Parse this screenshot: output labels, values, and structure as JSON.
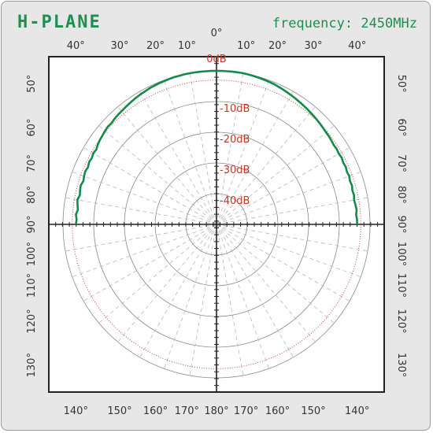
{
  "header": {
    "title": "H-PLANE",
    "frequency_label": "frequency:",
    "frequency_value": "2450",
    "frequency_unit": "MHz"
  },
  "colors": {
    "title": "#1e8f4f",
    "pattern": "#138a4a",
    "db_labels": "#c0392b",
    "reference_ring": "#c0392b",
    "grid": "#b8b8b8",
    "axes": "#222222"
  },
  "chart_data": {
    "type": "polar",
    "title": "H-PLANE",
    "subtitle": "frequency: 2450MHz",
    "zero_label": "0°",
    "top_angle_labels": [
      "40°",
      "30°",
      "20°",
      "10°",
      "10°",
      "20°",
      "30°",
      "40°"
    ],
    "side_angle_labels": [
      "50°",
      "60°",
      "70°",
      "80°",
      "90°",
      "100°",
      "110°",
      "120°",
      "130°"
    ],
    "bottom_angle_labels": [
      "140°",
      "150°",
      "160°",
      "170°",
      "180°",
      "170°",
      "160°",
      "150°",
      "140°"
    ],
    "radial_labels": [
      {
        "label": "0dB",
        "db": 0
      },
      {
        "label": "-10dB",
        "db": -10
      },
      {
        "label": "-20dB",
        "db": -20
      },
      {
        "label": "-30dB",
        "db": -30
      },
      {
        "label": "-40dB",
        "db": -40
      }
    ],
    "radial_range_db": [
      -50,
      0
    ],
    "reference_ring_db": -3,
    "angular_grid_step_deg": 10,
    "series": [
      {
        "angles_deg": [
          -90,
          -88,
          -86,
          -84,
          -82,
          -80,
          -78,
          -76,
          -74,
          -72,
          -70,
          -68,
          -66,
          -64,
          -62,
          -60,
          -58,
          -56,
          -54,
          -52,
          -50,
          -48,
          -46,
          -44,
          -42,
          -40,
          -38,
          -36,
          -34,
          -32,
          -30,
          -28,
          -26,
          -24,
          -22,
          -20,
          -18,
          -16,
          -14,
          -12,
          -10,
          -8,
          -6,
          -4,
          -2,
          0,
          2,
          4,
          6,
          8,
          10,
          12,
          14,
          16,
          18,
          20,
          22,
          24,
          26,
          28,
          30,
          32,
          34,
          36,
          38,
          40,
          42,
          44,
          46,
          48,
          50,
          52,
          54,
          56,
          58,
          60,
          62,
          64,
          66,
          68,
          70,
          72,
          74,
          76,
          78,
          80,
          82,
          84,
          86,
          88,
          90
        ],
        "gain_db": [
          -4.2,
          -4.4,
          -4.1,
          -4.6,
          -4.3,
          -4.0,
          -4.5,
          -4.2,
          -4.0,
          -4.4,
          -4.1,
          -3.9,
          -4.2,
          -3.8,
          -4.0,
          -3.7,
          -3.9,
          -3.4,
          -3.1,
          -2.9,
          -2.6,
          -2.4,
          -2.5,
          -2.2,
          -2.0,
          -1.9,
          -1.7,
          -1.5,
          -1.3,
          -1.1,
          -0.9,
          -0.8,
          -0.6,
          -0.5,
          -0.4,
          -0.3,
          -0.2,
          -0.1,
          -0.1,
          0.0,
          0.0,
          0.0,
          0.0,
          0.0,
          0.0,
          0.0,
          0.0,
          0.0,
          0.0,
          0.0,
          0.0,
          -0.1,
          -0.2,
          -0.3,
          -0.4,
          -0.5,
          -0.6,
          -0.8,
          -1.0,
          -1.2,
          -1.4,
          -1.6,
          -1.8,
          -2.0,
          -2.2,
          -2.4,
          -2.6,
          -2.8,
          -3.0,
          -3.2,
          -3.4,
          -3.5,
          -3.7,
          -3.9,
          -3.8,
          -4.0,
          -3.8,
          -4.1,
          -3.9,
          -4.2,
          -4.0,
          -4.3,
          -4.1,
          -4.4,
          -4.2,
          -4.5,
          -4.3,
          -4.1,
          -4.4,
          -4.2,
          -4.2
        ]
      }
    ]
  }
}
